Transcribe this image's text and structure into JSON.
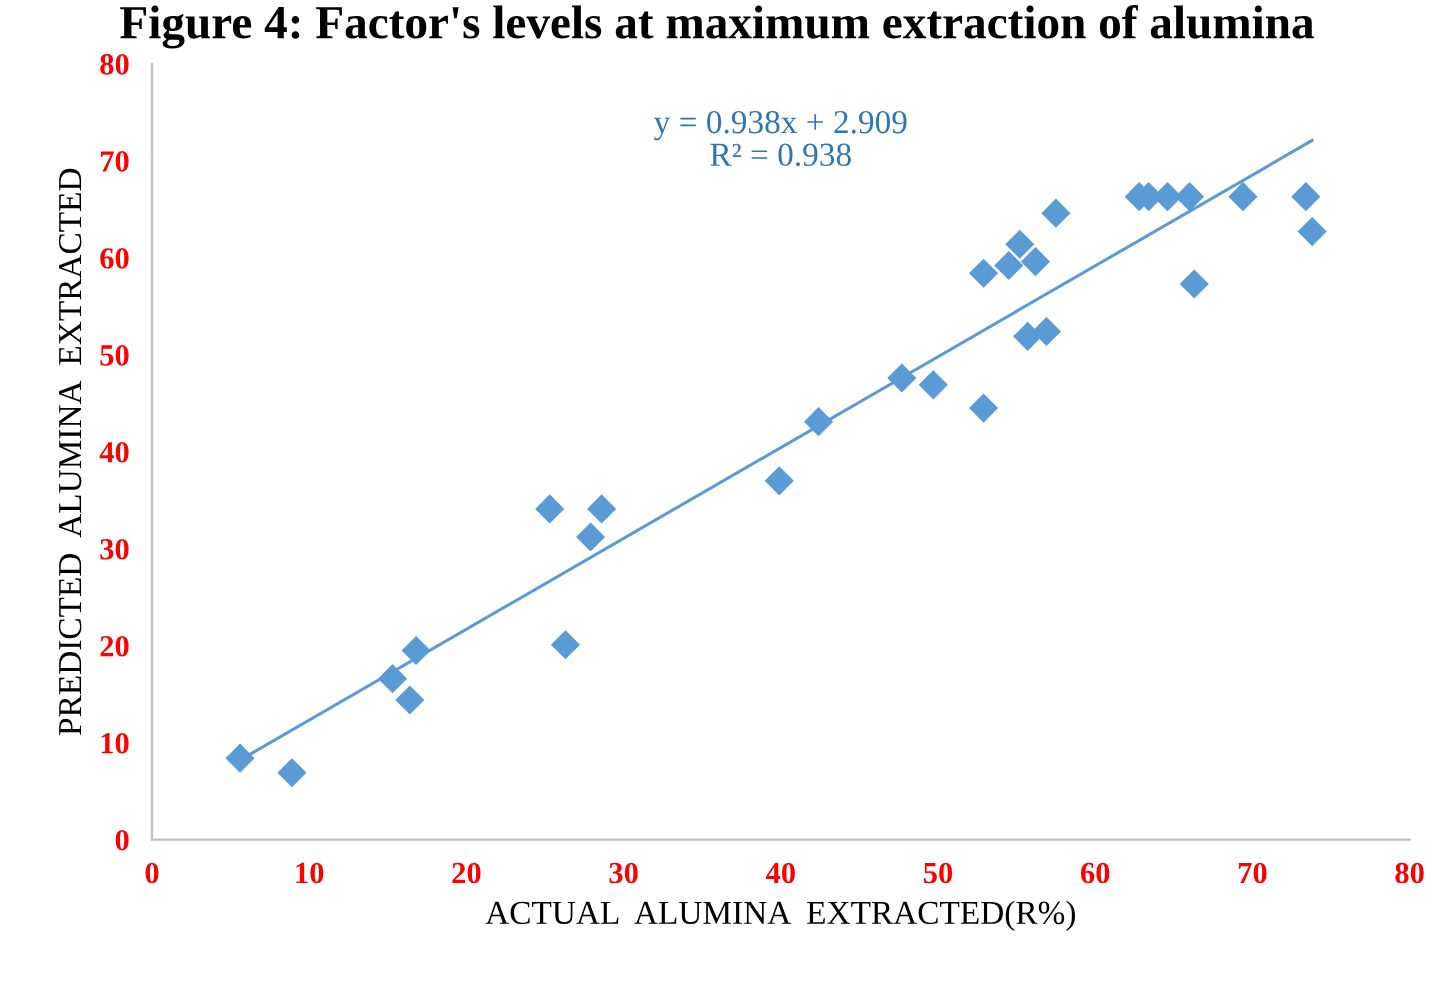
{
  "chart_data": {
    "type": "scatter",
    "title": "Figure 4: Factor's levels at maximum extraction of alumina",
    "xlabel": "ACTUAL  ALUMINA  EXTRACTED(R%)",
    "ylabel": "PREDICTED  ALUMINA  EXTRACTED",
    "xlim": [
      0,
      80
    ],
    "ylim": [
      0,
      80
    ],
    "xticks": [
      0,
      10,
      20,
      30,
      40,
      50,
      60,
      70,
      80
    ],
    "yticks": [
      0,
      10,
      20,
      30,
      40,
      50,
      60,
      70,
      80
    ],
    "grid": false,
    "legend": false,
    "annotations": [
      "y = 0.938x + 2.909\nR² = 0.938"
    ],
    "series": [
      {
        "marker": "diamond",
        "color": "#5b9bd5",
        "x": [
          5.6,
          8.9,
          15.3,
          16.4,
          16.8,
          25.3,
          26.3,
          27.9,
          28.6,
          39.9,
          42.4,
          47.7,
          49.7,
          52.9,
          52.9,
          54.5,
          55.2,
          56.2,
          55.7,
          56.9,
          57.5,
          62.8,
          63.4,
          64.3,
          64.6,
          66.0,
          66.3,
          69.4,
          73.4,
          73.8
        ],
        "values": [
          8.4,
          6.9,
          16.6,
          14.4,
          19.5,
          34.1,
          20.1,
          31.2,
          34.1,
          37.0,
          43.1,
          47.6,
          46.9,
          44.5,
          58.4,
          59.2,
          61.4,
          59.6,
          51.9,
          52.4,
          64.6,
          66.3,
          66.3,
          null,
          66.3,
          66.3,
          57.3,
          66.3,
          66.3,
          62.7
        ]
      },
      {
        "type": "line",
        "color": "#5b9bd5",
        "x": [
          5.6,
          73.8
        ],
        "values": [
          8.2,
          72.1
        ],
        "line_style": "solid"
      }
    ]
  }
}
